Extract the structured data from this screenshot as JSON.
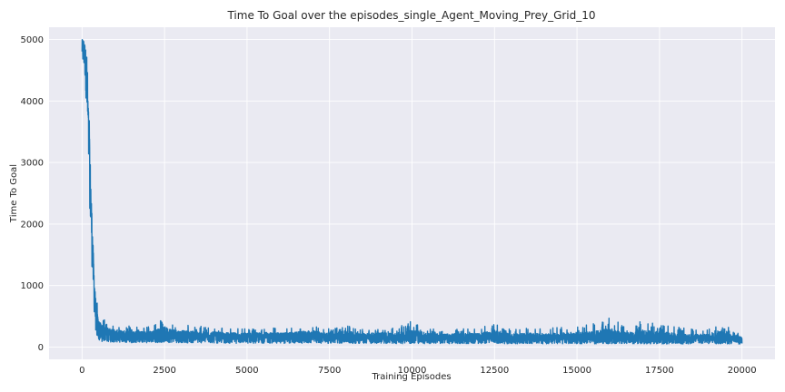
{
  "chart_data": {
    "type": "line",
    "title": "Time To Goal over the episodes_single_Agent_Moving_Prey_Grid_10",
    "xlabel": "Training Episodes",
    "ylabel": "Time To Goal",
    "xlim": [
      -1000,
      21000
    ],
    "ylim": [
      -200,
      5200
    ],
    "xticks": [
      0,
      2500,
      5000,
      7500,
      10000,
      12500,
      15000,
      17500,
      20000
    ],
    "xtick_labels": [
      "0",
      "2500",
      "5000",
      "7500",
      "10000",
      "12500",
      "15000",
      "17500",
      "20000"
    ],
    "yticks": [
      0,
      1000,
      2000,
      3000,
      4000,
      5000
    ],
    "ytick_labels": [
      "0",
      "1000",
      "2000",
      "3000",
      "4000",
      "5000"
    ],
    "grid": true,
    "background": "#eaeaf2",
    "series": [
      {
        "color": "#1f77b4",
        "x": [
          0,
          50,
          100,
          130,
          160,
          200,
          250,
          300,
          350,
          400,
          450,
          500,
          600,
          700,
          800,
          1000,
          1500,
          2000,
          2500,
          3000,
          3500,
          4000,
          4500,
          5000,
          5500,
          6000,
          6500,
          7000,
          7500,
          8000,
          8500,
          9000,
          9500,
          10000,
          10500,
          11000,
          11500,
          12000,
          12500,
          13000,
          13500,
          14000,
          14500,
          15000,
          15500,
          16000,
          16500,
          17000,
          17500,
          18000,
          18500,
          19000,
          19400,
          19700,
          20000
        ],
        "y": [
          5000,
          4950,
          4800,
          4500,
          4100,
          3500,
          2700,
          1900,
          1200,
          700,
          420,
          320,
          260,
          240,
          220,
          200,
          190,
          185,
          200,
          185,
          180,
          175,
          170,
          165,
          170,
          165,
          170,
          175,
          165,
          170,
          160,
          165,
          160,
          165,
          160,
          155,
          160,
          160,
          165,
          150,
          155,
          150,
          150,
          155,
          150,
          160,
          155,
          150,
          145,
          140,
          145,
          140,
          150,
          130,
          130
        ],
        "min_band": [
          4500,
          4500,
          4300,
          3900,
          3500,
          2800,
          2000,
          1300,
          700,
          300,
          150,
          100,
          90,
          90,
          80,
          80,
          70,
          70,
          75,
          70,
          65,
          65,
          60,
          60,
          65,
          60,
          60,
          65,
          60,
          60,
          55,
          60,
          55,
          55,
          55,
          55,
          55,
          55,
          60,
          50,
          55,
          50,
          50,
          55,
          50,
          55,
          55,
          50,
          50,
          50,
          50,
          50,
          55,
          50,
          50
        ],
        "max_band": [
          5000,
          5000,
          5000,
          4950,
          4600,
          4200,
          3400,
          2500,
          1700,
          1100,
          800,
          600,
          470,
          450,
          420,
          380,
          340,
          330,
          490,
          370,
          350,
          330,
          310,
          300,
          320,
          310,
          340,
          380,
          300,
          380,
          290,
          330,
          300,
          430,
          300,
          280,
          300,
          290,
          420,
          290,
          320,
          300,
          330,
          350,
          380,
          480,
          330,
          430,
          380,
          330,
          300,
          290,
          550,
          260,
          200
        ]
      }
    ]
  }
}
